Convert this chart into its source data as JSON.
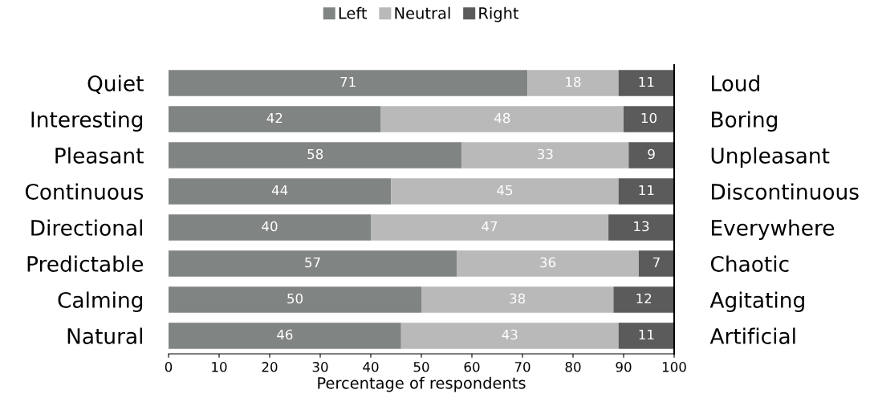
{
  "chart_data": {
    "type": "bar",
    "orientation": "horizontal",
    "stacked": true,
    "categories": [
      "Quiet",
      "Interesting",
      "Pleasant",
      "Continuous",
      "Directional",
      "Predictable",
      "Calming",
      "Natural"
    ],
    "y2_categories": [
      "Loud",
      "Boring",
      "Unpleasant",
      "Discontinuous",
      "Everywhere",
      "Chaotic",
      "Agitating",
      "Artificial"
    ],
    "series": [
      {
        "name": "Left",
        "color": "#808583",
        "values": [
          71,
          42,
          58,
          44,
          40,
          57,
          50,
          46
        ]
      },
      {
        "name": "Neutral",
        "color": "#b9b9b9",
        "values": [
          18,
          48,
          33,
          45,
          47,
          36,
          38,
          43
        ]
      },
      {
        "name": "Right",
        "color": "#5b5b5b",
        "values": [
          11,
          10,
          9,
          11,
          13,
          7,
          12,
          11
        ]
      }
    ],
    "xlabel": "Percentage of respondents",
    "xlim": [
      0,
      100
    ],
    "xticks": [
      0,
      10,
      20,
      30,
      40,
      50,
      60,
      70,
      80,
      90,
      100
    ],
    "data_labels": true,
    "legend": "top",
    "grid": false
  }
}
